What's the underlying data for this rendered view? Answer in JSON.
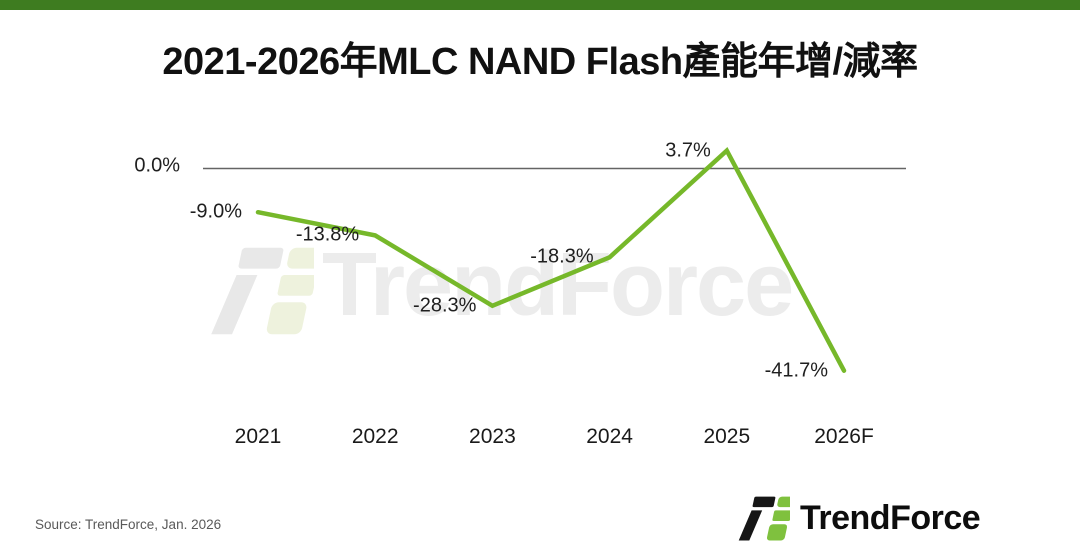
{
  "page": {
    "top_bar_color": "#3e7c20"
  },
  "header": {
    "title": "2021-2026年MLC NAND Flash產能年增/減率"
  },
  "chart_data": {
    "type": "line",
    "title": "2021-2026年MLC NAND Flash產能年增/減率",
    "categories": [
      "2021",
      "2022",
      "2023",
      "2024",
      "2025",
      "2026F"
    ],
    "values": [
      -9.0,
      -13.8,
      -28.3,
      -18.3,
      3.7,
      -41.7
    ],
    "value_labels": [
      "-9.0%",
      "-13.8%",
      "-28.3%",
      "-18.3%",
      "3.7%",
      "-41.7%"
    ],
    "baseline_label": "0.0%",
    "baseline_value": 0,
    "unit": "%",
    "line_color": "#76b82a",
    "axis_color": "#646464",
    "label_color": "#1f1f1f",
    "grid": false,
    "legend": "none",
    "ylim": [
      -45,
      8
    ],
    "xlabel": "",
    "ylabel": ""
  },
  "watermark": {
    "text": "TrendForce"
  },
  "footer": {
    "source": "Source: TrendForce, Jan. 2026",
    "logo_text": "TrendForce",
    "logo_green": "#7fc13e",
    "logo_black": "#161616"
  }
}
